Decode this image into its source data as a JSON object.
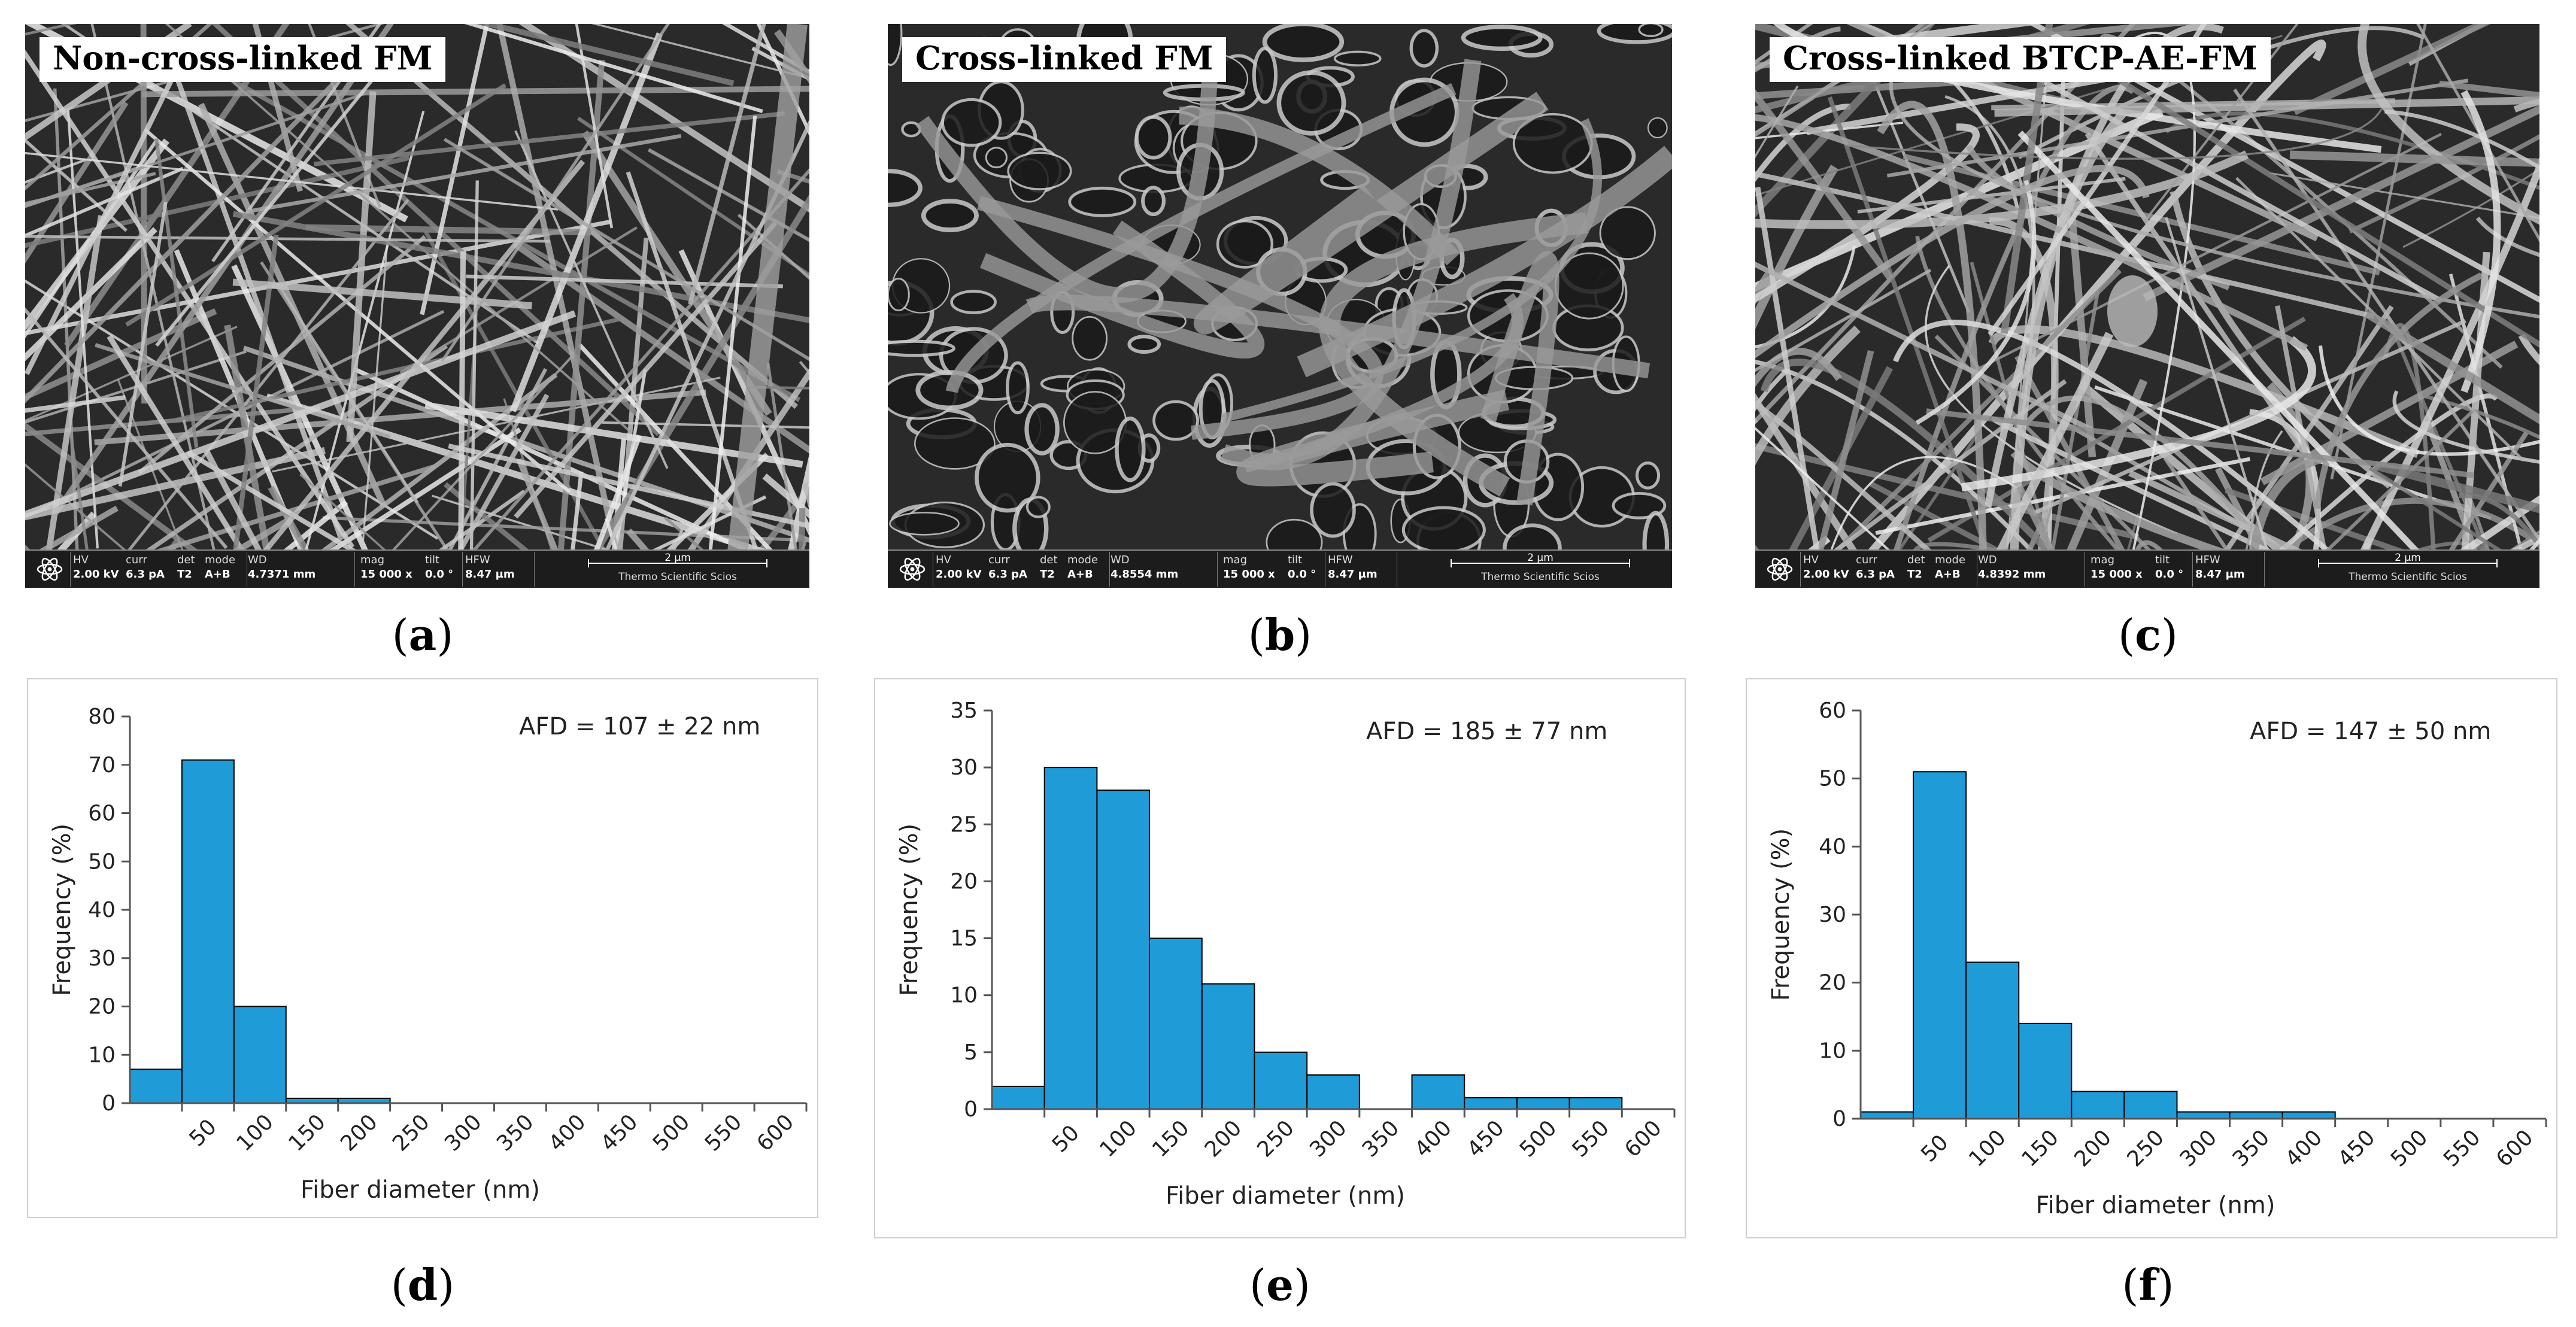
{
  "sem_images": [
    {
      "label": "Non-cross-linked FM",
      "databar": {
        "hv_h": "HV",
        "hv": "2.00 kV",
        "curr_h": "curr",
        "curr": "6.3 pA",
        "det_h": "det",
        "det": "T2",
        "mode_h": "mode",
        "mode": "A+B",
        "wd_h": "WD",
        "wd": "4.7371 mm",
        "mag_h": "mag",
        "mag": "15 000 x",
        "tilt_h": "tilt",
        "tilt": "0.0 °",
        "hfw_h": "HFW",
        "hfw": "8.47 µm",
        "scale": "2 µm",
        "brand": "Thermo Scientific Scios"
      },
      "caption": "a"
    },
    {
      "label": "Cross-linked FM",
      "databar": {
        "hv_h": "HV",
        "hv": "2.00 kV",
        "curr_h": "curr",
        "curr": "6.3 pA",
        "det_h": "det",
        "det": "T2",
        "mode_h": "mode",
        "mode": "A+B",
        "wd_h": "WD",
        "wd": "4.8554 mm",
        "mag_h": "mag",
        "mag": "15 000 x",
        "tilt_h": "tilt",
        "tilt": "0.0 °",
        "hfw_h": "HFW",
        "hfw": "8.47 µm",
        "scale": "2 µm",
        "brand": "Thermo Scientific Scios"
      },
      "caption": "b"
    },
    {
      "label": "Cross-linked BTCP-AE-FM",
      "databar": {
        "hv_h": "HV",
        "hv": "2.00 kV",
        "curr_h": "curr",
        "curr": "6.3 pA",
        "det_h": "det",
        "det": "T2",
        "mode_h": "mode",
        "mode": "A+B",
        "wd_h": "WD",
        "wd": "4.8392 mm",
        "mag_h": "mag",
        "mag": "15 000 x",
        "tilt_h": "tilt",
        "tilt": "0.0 °",
        "hfw_h": "HFW",
        "hfw": "8.47 µm",
        "scale": "2 µm",
        "brand": "Thermo Scientific Scios"
      },
      "caption": "c"
    }
  ],
  "colors": {
    "bar_fill": "#1f9bd7",
    "bar_stroke": "#000000",
    "axis": "#555555",
    "frame": "#cfcfcf"
  },
  "chart_data": [
    {
      "type": "bar",
      "caption": "d",
      "categories": [
        "50",
        "100",
        "150",
        "200",
        "250",
        "300",
        "350",
        "400",
        "450",
        "500",
        "550",
        "600"
      ],
      "values": [
        7,
        71,
        20,
        1,
        1,
        0,
        0,
        0,
        0,
        0,
        0,
        0
      ],
      "ylim": [
        0,
        80
      ],
      "yticks": [
        0,
        10,
        20,
        30,
        40,
        50,
        60,
        70,
        80
      ],
      "xlabel": "Fiber diameter (nm)",
      "ylabel": "Frequency (%)",
      "annotation": "AFD = 107 ± 22 nm",
      "grid": false
    },
    {
      "type": "bar",
      "caption": "e",
      "categories": [
        "50",
        "100",
        "150",
        "200",
        "250",
        "300",
        "350",
        "400",
        "450",
        "500",
        "550",
        "600"
      ],
      "values": [
        2,
        30,
        28,
        15,
        11,
        5,
        3,
        0,
        3,
        1,
        1,
        1
      ],
      "ylim": [
        0,
        35
      ],
      "yticks": [
        0,
        5,
        10,
        15,
        20,
        25,
        30,
        35
      ],
      "xlabel": "Fiber diameter (nm)",
      "ylabel": "Frequency (%)",
      "annotation": "AFD = 185 ± 77 nm",
      "grid": false
    },
    {
      "type": "bar",
      "caption": "f",
      "categories": [
        "50",
        "100",
        "150",
        "200",
        "250",
        "300",
        "350",
        "400",
        "450",
        "500",
        "550",
        "600"
      ],
      "values": [
        1,
        51,
        23,
        14,
        4,
        4,
        1,
        1,
        1,
        0,
        0,
        0
      ],
      "ylim": [
        0,
        60
      ],
      "yticks": [
        0,
        10,
        20,
        30,
        40,
        50,
        60
      ],
      "xlabel": "Fiber diameter (nm)",
      "ylabel": "Frequency (%)",
      "annotation": "AFD = 147 ± 50 nm",
      "grid": false
    }
  ]
}
